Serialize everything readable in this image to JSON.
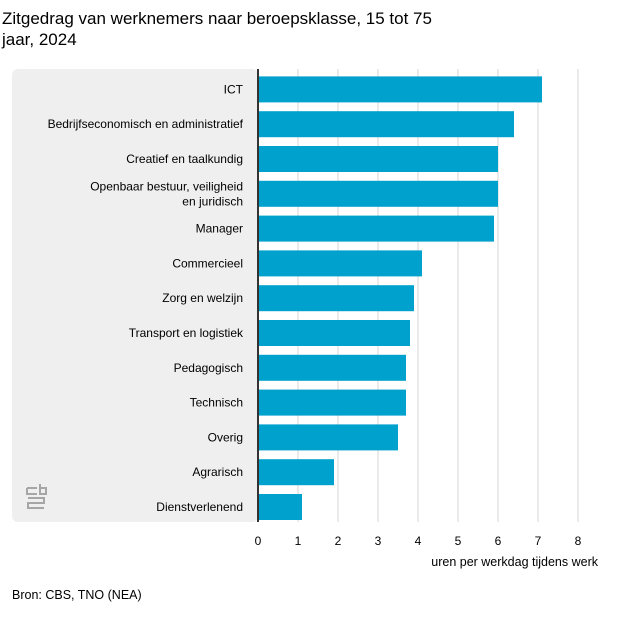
{
  "title": "  Zitgedrag van werknemers naar beroepsklasse, 15 tot 75\njaar, 2024",
  "source": "Bron: CBS, TNO (NEA)",
  "colors": {
    "bar": "#00a1cd",
    "panel": "#efefef",
    "grid": "#d4d4d4",
    "axis": "#333333",
    "logo": "#a6a6a6"
  },
  "logo": "cbs",
  "chart_data": {
    "type": "bar",
    "orientation": "horizontal",
    "categories": [
      "ICT",
      "Bedrijfseconomisch en administratief",
      "Creatief en taalkundig",
      "Openbaar bestuur, veiligheid\nen juridisch",
      "Manager",
      "Commercieel",
      "Zorg en welzijn",
      "Transport en logistiek",
      "Pedagogisch",
      "Technisch",
      "Overig",
      "Agrarisch",
      "Dienstverlenend"
    ],
    "values": [
      7.1,
      6.4,
      6.0,
      6.0,
      5.9,
      4.1,
      3.9,
      3.8,
      3.7,
      3.7,
      3.5,
      1.9,
      1.1
    ],
    "xticks": [
      0,
      1,
      2,
      3,
      4,
      5,
      6,
      7,
      8
    ],
    "xlim": [
      0,
      8
    ],
    "xlabel": "uren per werkdag tijdens werk",
    "ylabel": "",
    "grid": true
  }
}
